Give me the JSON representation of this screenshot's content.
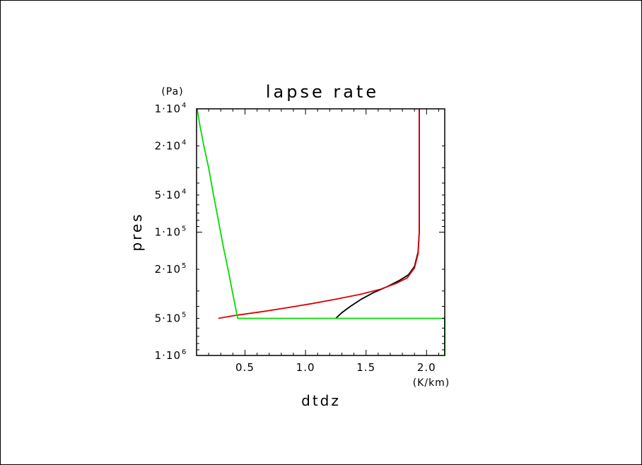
{
  "chart_data": {
    "type": "line",
    "title": "lapse rate",
    "xlabel": "dtdz",
    "xunit": "(K/km)",
    "ylabel": "pres",
    "yunit": "(Pa)",
    "xlim": [
      0.1,
      2.15
    ],
    "ylim": [
      10000,
      1000000
    ],
    "yscale": "log",
    "ydirection": "downward-increasing",
    "grid": false,
    "x_ticks": [
      {
        "value": 0.5,
        "label": "0.5"
      },
      {
        "value": 1.0,
        "label": "1.0"
      },
      {
        "value": 1.5,
        "label": "1.5"
      },
      {
        "value": 2.0,
        "label": "2.0"
      }
    ],
    "y_ticks": [
      {
        "value": 10000,
        "mant": "1·10",
        "exp": "4"
      },
      {
        "value": 20000,
        "mant": "2·10",
        "exp": "4"
      },
      {
        "value": 50000,
        "mant": "5·10",
        "exp": "4"
      },
      {
        "value": 100000,
        "mant": "1·10",
        "exp": "5"
      },
      {
        "value": 200000,
        "mant": "2·10",
        "exp": "5"
      },
      {
        "value": 500000,
        "mant": "5·10",
        "exp": "5"
      },
      {
        "value": 1000000,
        "mant": "1·10",
        "exp": "6"
      }
    ],
    "series": [
      {
        "color": "#000000",
        "points": [
          [
            1.25,
            500000
          ],
          [
            1.3,
            450000
          ],
          [
            1.37,
            400000
          ],
          [
            1.46,
            350000
          ],
          [
            1.56,
            310000
          ],
          [
            1.68,
            275000
          ],
          [
            1.78,
            245000
          ],
          [
            1.85,
            222000
          ],
          [
            1.9,
            190000
          ],
          [
            1.93,
            145000
          ],
          [
            1.94,
            100000
          ],
          [
            1.94,
            50000
          ],
          [
            1.94,
            10000
          ]
        ]
      },
      {
        "color": "#dd0000",
        "points": [
          [
            0.28,
            500000
          ],
          [
            0.44,
            470000
          ],
          [
            0.65,
            440000
          ],
          [
            0.85,
            410000
          ],
          [
            1.05,
            380000
          ],
          [
            1.25,
            350000
          ],
          [
            1.45,
            320000
          ],
          [
            1.62,
            290000
          ],
          [
            1.75,
            260000
          ],
          [
            1.84,
            235000
          ],
          [
            1.9,
            195000
          ],
          [
            1.93,
            150000
          ],
          [
            1.94,
            100000
          ],
          [
            1.94,
            50000
          ],
          [
            1.94,
            10000
          ]
        ]
      },
      {
        "color": "#00dd00",
        "points": [
          [
            0.105,
            10000
          ],
          [
            0.13,
            14000
          ],
          [
            0.16,
            20000
          ],
          [
            0.2,
            30000
          ],
          [
            0.24,
            50000
          ],
          [
            0.28,
            80000
          ],
          [
            0.32,
            130000
          ],
          [
            0.36,
            200000
          ],
          [
            0.4,
            320000
          ],
          [
            0.44,
            500000
          ],
          [
            2.15,
            500000
          ],
          [
            2.15,
            1000000
          ]
        ]
      }
    ]
  }
}
